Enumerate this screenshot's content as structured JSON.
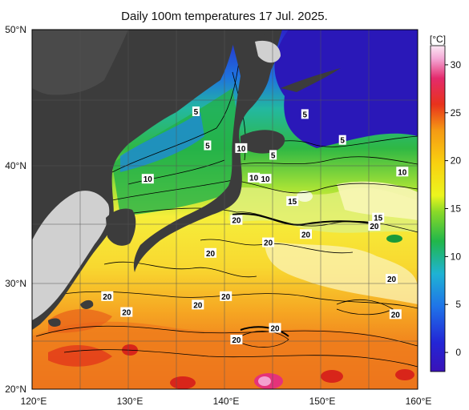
{
  "title": "Daily 100m temperatures 17 Jul. 2025.",
  "colorbar": {
    "unit": "[°C]",
    "ticks": [
      "30",
      "25",
      "20",
      "15",
      "10",
      "5",
      "0"
    ],
    "tick_values": [
      30,
      25,
      20,
      15,
      10,
      5,
      0
    ],
    "range": [
      -2,
      32
    ],
    "colors": [
      "#3a12b8",
      "#1f52e6",
      "#1f9fe0",
      "#2bd0a4",
      "#21b33a",
      "#7ed321",
      "#f4f01c",
      "#f9c30c",
      "#f5861a",
      "#e0301e",
      "#ee2a7a",
      "#f5a8d8",
      "#fbe6f4"
    ]
  },
  "axes": {
    "lat_labels": [
      "50°N",
      "40°N",
      "30°N",
      "20°N"
    ],
    "lon_labels": [
      "120°E",
      "130°E",
      "140°E",
      "150°E",
      "160°E"
    ]
  },
  "contour_labels": [
    {
      "text": "5",
      "lon": 137.0,
      "lat": 44.0
    },
    {
      "text": "5",
      "lon": 138.2,
      "lat": 41.5
    },
    {
      "text": "10",
      "lon": 141.7,
      "lat": 41.3
    },
    {
      "text": "5",
      "lon": 148.3,
      "lat": 43.8
    },
    {
      "text": "5",
      "lon": 152.2,
      "lat": 41.9
    },
    {
      "text": "5",
      "lon": 145.0,
      "lat": 40.8
    },
    {
      "text": "10",
      "lon": 132.0,
      "lat": 38.9
    },
    {
      "text": "10",
      "lon": 143.0,
      "lat": 39.0
    },
    {
      "text": "10",
      "lon": 144.2,
      "lat": 38.9
    },
    {
      "text": "10",
      "lon": 158.4,
      "lat": 39.5
    },
    {
      "text": "15",
      "lon": 147.0,
      "lat": 37.0
    },
    {
      "text": "15",
      "lon": 155.9,
      "lat": 35.6
    },
    {
      "text": "20",
      "lon": 141.2,
      "lat": 35.4
    },
    {
      "text": "20",
      "lon": 148.4,
      "lat": 34.2
    },
    {
      "text": "20",
      "lon": 155.5,
      "lat": 34.9
    },
    {
      "text": "20",
      "lon": 144.5,
      "lat": 33.5
    },
    {
      "text": "20",
      "lon": 138.5,
      "lat": 32.6
    },
    {
      "text": "20",
      "lon": 157.3,
      "lat": 30.4
    },
    {
      "text": "20",
      "lon": 127.8,
      "lat": 28.8
    },
    {
      "text": "20",
      "lon": 129.8,
      "lat": 27.3
    },
    {
      "text": "20",
      "lon": 140.1,
      "lat": 28.8
    },
    {
      "text": "20",
      "lon": 137.2,
      "lat": 28.0
    },
    {
      "text": "20",
      "lon": 157.7,
      "lat": 27.1
    },
    {
      "text": "20",
      "lon": 145.2,
      "lat": 25.8
    },
    {
      "text": "20",
      "lon": 141.2,
      "lat": 24.7
    }
  ]
}
